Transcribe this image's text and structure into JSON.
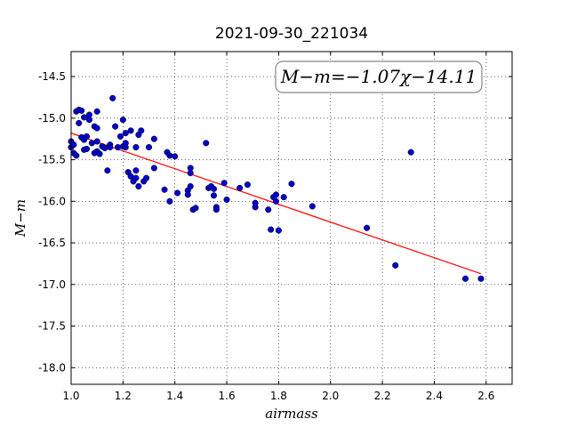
{
  "chart_data": {
    "type": "scatter",
    "title": "2021-09-30_221034",
    "xlabel": "airmass",
    "ylabel": "M−m",
    "xlim": [
      1.0,
      2.7
    ],
    "ylim": [
      -18.2,
      -14.2
    ],
    "xticks": [
      "1.0",
      "1.2",
      "1.4",
      "1.6",
      "1.8",
      "2.0",
      "2.2",
      "2.4",
      "2.6"
    ],
    "yticks": [
      "-14.5",
      "-15.0",
      "-15.5",
      "-16.0",
      "-16.5",
      "-17.0",
      "-17.5",
      "-18.0"
    ],
    "grid": true,
    "annotation": "M−m=−1.07χ−14.11",
    "fit_line": {
      "slope": -1.07,
      "intercept": -14.11,
      "x_range": [
        1.0,
        2.58
      ],
      "color": "#ff0000"
    },
    "point_color": "#0000cc",
    "series": [
      {
        "points": [
          [
            1.0,
            -15.28
          ],
          [
            1.0,
            -15.35
          ],
          [
            1.01,
            -15.32
          ],
          [
            1.01,
            -15.42
          ],
          [
            1.02,
            -15.45
          ],
          [
            1.02,
            -14.92
          ],
          [
            1.03,
            -14.9
          ],
          [
            1.03,
            -15.06
          ],
          [
            1.04,
            -14.91
          ],
          [
            1.04,
            -15.23
          ],
          [
            1.05,
            -15.26
          ],
          [
            1.05,
            -15.38
          ],
          [
            1.05,
            -14.99
          ],
          [
            1.06,
            -15.22
          ],
          [
            1.06,
            -15.37
          ],
          [
            1.07,
            -15.02
          ],
          [
            1.07,
            -14.96
          ],
          [
            1.08,
            -15.3
          ],
          [
            1.09,
            -15.1
          ],
          [
            1.09,
            -15.42
          ],
          [
            1.1,
            -15.12
          ],
          [
            1.1,
            -15.28
          ],
          [
            1.1,
            -15.4
          ],
          [
            1.1,
            -14.92
          ],
          [
            1.11,
            -15.43
          ],
          [
            1.12,
            -15.34
          ],
          [
            1.13,
            -15.36
          ],
          [
            1.14,
            -15.63
          ],
          [
            1.15,
            -15.32
          ],
          [
            1.15,
            -15.35
          ],
          [
            1.16,
            -14.76
          ],
          [
            1.17,
            -15.1
          ],
          [
            1.18,
            -15.35
          ],
          [
            1.19,
            -15.22
          ],
          [
            1.2,
            -15.02
          ],
          [
            1.2,
            -15.34
          ],
          [
            1.21,
            -15.3
          ],
          [
            1.21,
            -15.35
          ],
          [
            1.21,
            -15.18
          ],
          [
            1.22,
            -15.65
          ],
          [
            1.23,
            -15.15
          ],
          [
            1.23,
            -15.7
          ],
          [
            1.24,
            -15.76
          ],
          [
            1.25,
            -15.72
          ],
          [
            1.25,
            -15.35
          ],
          [
            1.25,
            -15.63
          ],
          [
            1.26,
            -15.2
          ],
          [
            1.26,
            -15.82
          ],
          [
            1.27,
            -15.15
          ],
          [
            1.28,
            -15.76
          ],
          [
            1.29,
            -15.72
          ],
          [
            1.3,
            -15.35
          ],
          [
            1.32,
            -15.25
          ],
          [
            1.32,
            -15.6
          ],
          [
            1.36,
            -15.86
          ],
          [
            1.37,
            -15.41
          ],
          [
            1.38,
            -15.45
          ],
          [
            1.38,
            -16.0
          ],
          [
            1.4,
            -15.46
          ],
          [
            1.41,
            -15.9
          ],
          [
            1.45,
            -15.87
          ],
          [
            1.45,
            -15.92
          ],
          [
            1.46,
            -15.6
          ],
          [
            1.46,
            -15.66
          ],
          [
            1.46,
            -15.82
          ],
          [
            1.47,
            -16.1
          ],
          [
            1.48,
            -16.08
          ],
          [
            1.52,
            -15.3
          ],
          [
            1.53,
            -15.84
          ],
          [
            1.54,
            -15.82
          ],
          [
            1.55,
            -15.85
          ],
          [
            1.55,
            -15.93
          ],
          [
            1.56,
            -16.07
          ],
          [
            1.56,
            -16.1
          ],
          [
            1.59,
            -15.78
          ],
          [
            1.6,
            -15.98
          ],
          [
            1.65,
            -15.84
          ],
          [
            1.68,
            -15.8
          ],
          [
            1.71,
            -16.07
          ],
          [
            1.71,
            -16.02
          ],
          [
            1.76,
            -16.1
          ],
          [
            1.77,
            -16.34
          ],
          [
            1.78,
            -15.95
          ],
          [
            1.79,
            -15.92
          ],
          [
            1.79,
            -16.0
          ],
          [
            1.8,
            -16.35
          ],
          [
            1.82,
            -15.95
          ],
          [
            1.85,
            -15.79
          ],
          [
            1.93,
            -16.06
          ],
          [
            2.14,
            -16.32
          ],
          [
            2.25,
            -16.77
          ],
          [
            2.31,
            -15.41
          ],
          [
            2.52,
            -16.93
          ],
          [
            2.58,
            -16.93
          ]
        ]
      }
    ]
  }
}
